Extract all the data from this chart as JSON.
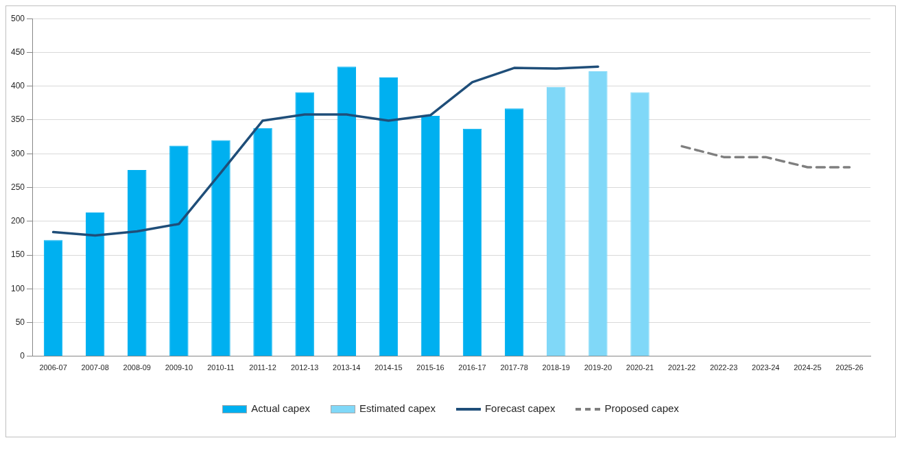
{
  "chart_data": {
    "type": "bar",
    "categories": [
      "2006-07",
      "2007-08",
      "2008-09",
      "2009-10",
      "2010-11",
      "2011-12",
      "2012-13",
      "2013-14",
      "2014-15",
      "2015-16",
      "2016-17",
      "2017-78",
      "2018-19",
      "2019-20",
      "2020-21",
      "2021-22",
      "2022-23",
      "2023-24",
      "2024-25",
      "2025-26"
    ],
    "series": [
      {
        "name": "Actual capex",
        "color": "#00b0f0",
        "values": [
          172,
          213,
          276,
          312,
          320,
          338,
          391,
          429,
          413,
          356,
          337,
          367,
          null,
          null,
          null,
          null,
          null,
          null,
          null,
          null
        ]
      },
      {
        "name": "Estimated capex",
        "color": "#80d8f8",
        "values": [
          null,
          null,
          null,
          null,
          null,
          null,
          null,
          null,
          null,
          null,
          null,
          null,
          399,
          422,
          391,
          null,
          null,
          null,
          null,
          null
        ]
      },
      {
        "name": "Forecast capex",
        "type": "line",
        "color": "#1f4e79",
        "line_style": "solid",
        "values": [
          184,
          179,
          185,
          196,
          272,
          349,
          358,
          358,
          349,
          357,
          406,
          427,
          426,
          429,
          null,
          null,
          null,
          null,
          null,
          null
        ]
      },
      {
        "name": "Proposed capex",
        "type": "line",
        "color": "#7f7f7f",
        "line_style": "dashed",
        "values": [
          null,
          null,
          null,
          null,
          null,
          null,
          null,
          null,
          null,
          null,
          null,
          null,
          null,
          null,
          null,
          311,
          295,
          295,
          280,
          280
        ]
      }
    ],
    "ylim": [
      0,
      500
    ],
    "yticks": [
      0,
      50,
      100,
      150,
      200,
      250,
      300,
      350,
      400,
      450,
      500
    ],
    "grid": "y",
    "legend": "bottom",
    "marker": "none"
  }
}
